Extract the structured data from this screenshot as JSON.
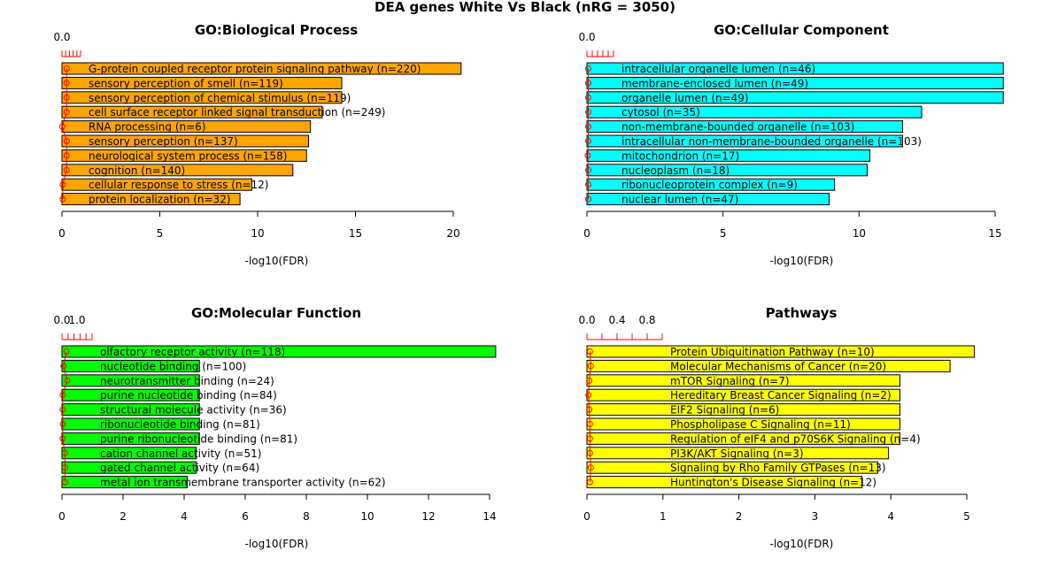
{
  "title": "DEA genes White Vs Black (nRG = 3050)",
  "chart_data": [
    {
      "type": "bar",
      "orientation": "horizontal",
      "title": "GO:Biological Process",
      "xlabel": "-log10(FDR)",
      "bar_color": "#FFA500",
      "xlim": [
        0,
        22
      ],
      "x_ticks": [
        0,
        5,
        10,
        15,
        20
      ],
      "top_ticks": [
        "0.0"
      ],
      "top_axis_max": 1.2,
      "categories": [
        "G-protein coupled receptor protein signaling pathway (n=220)",
        "sensory perception of smell (n=119)",
        "sensory perception of chemical stimulus (n=119)",
        "cell surface receptor linked signal transduction (n=249)",
        "RNA processing (n=6)",
        "sensory perception (n=137)",
        "neurological system process (n=158)",
        "cognition (n=140)",
        "cellular response to stress (n=12)",
        "protein localization (n=32)"
      ],
      "values": [
        22.0,
        14.3,
        14.3,
        13.3,
        12.7,
        12.6,
        12.5,
        11.8,
        9.7,
        9.1
      ],
      "ratio_values": [
        0.3,
        0.3,
        0.3,
        0.3,
        0.02,
        0.3,
        0.3,
        0.3,
        0.05,
        0.05
      ]
    },
    {
      "type": "bar",
      "orientation": "horizontal",
      "title": "GO:Cellular Component",
      "xlabel": "-log10(FDR)",
      "bar_color": "#00FFFF",
      "xlim": [
        0,
        16
      ],
      "x_ticks": [
        0,
        5,
        10,
        15
      ],
      "top_ticks": [
        "0.0"
      ],
      "top_axis_max": 1.0,
      "categories": [
        "intracellular organelle lumen (n=46)",
        "membrane-enclosed lumen (n=49)",
        "organelle lumen (n=49)",
        "cytosol (n=35)",
        "non-membrane-bounded organelle (n=103)",
        "intracellular non-membrane-bounded organelle (n=103)",
        "mitochondrion (n=17)",
        "nucleoplasm (n=18)",
        "ribonucleoprotein complex (n=9)",
        "nuclear lumen (n=47)"
      ],
      "values": [
        16.0,
        16.0,
        15.4,
        12.3,
        11.6,
        11.6,
        10.4,
        10.3,
        9.1,
        8.9
      ],
      "ratio_values": [
        0.05,
        0.05,
        0.05,
        0.05,
        0.05,
        0.05,
        0.03,
        0.05,
        0.05,
        0.05
      ]
    },
    {
      "type": "bar",
      "orientation": "horizontal",
      "title": "GO:Molecular Function",
      "xlabel": "-log10(FDR)",
      "bar_color": "#00FF00",
      "xlim": [
        0,
        14
      ],
      "x_ticks": [
        0,
        2,
        4,
        6,
        8,
        10,
        12,
        14
      ],
      "top_ticks": [
        "0.0",
        "1.0"
      ],
      "top_axis_max": 2.0,
      "categories": [
        "olfactory receptor activity (n=118)",
        "nucleotide binding (n=100)",
        "neurotransmitter binding (n=24)",
        "purine nucleotide binding (n=84)",
        "structural molecule activity (n=36)",
        "ribonucleotide binding (n=81)",
        "purine ribonucleotide binding (n=81)",
        "cation channel activity (n=51)",
        "gated channel activity (n=64)",
        "metal ion transmembrane transporter activity (n=62)"
      ],
      "values": [
        14.2,
        4.5,
        4.5,
        4.5,
        4.5,
        4.5,
        4.5,
        4.4,
        4.4,
        4.1
      ],
      "ratio_values": [
        0.3,
        0.1,
        0.35,
        0.05,
        0.05,
        0.05,
        0.05,
        0.2,
        0.2,
        0.2
      ]
    },
    {
      "type": "bar",
      "orientation": "horizontal",
      "title": "Pathways",
      "xlabel": "-log10(FDR)",
      "bar_color": "#FFFF00",
      "xlim": [
        0,
        5
      ],
      "x_ticks": [
        0,
        1,
        2,
        3,
        4,
        5
      ],
      "top_ticks": [
        "0.0",
        "0.4",
        "0.8"
      ],
      "top_axis_max": 1.0,
      "categories": [
        "Protein Ubiquitination Pathway (n=10)",
        "Molecular Mechanisms of Cancer (n=20)",
        "mTOR Signaling (n=7)",
        "Hereditary Breast Cancer Signaling (n=2)",
        "EIF2 Signaling (n=6)",
        "Phospholipase C Signaling (n=11)",
        "Regulation of eIF4 and p70S6K Signaling (n=4)",
        "PI3K/AKT Signaling (n=3)",
        "Signaling by Rho Family GTPases (n=13)",
        "Huntington's Disease Signaling (n=12)"
      ],
      "values": [
        5.72,
        4.78,
        4.12,
        4.12,
        4.12,
        4.12,
        4.12,
        3.97,
        3.83,
        3.62
      ],
      "ratio_values": [
        0.04,
        0.05,
        0.03,
        0.02,
        0.03,
        0.04,
        0.04,
        0.04,
        0.05,
        0.04
      ]
    }
  ]
}
